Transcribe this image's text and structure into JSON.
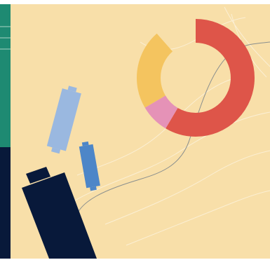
{
  "palette": {
    "page_background": "#ffffff",
    "canvas_background": "#f8dfa9",
    "sidebar_teal": "#1e8a72",
    "sidebar_navy": "#08193a",
    "sidebar_lines": "#a9d4c4",
    "donut_red": "#de5549",
    "donut_yellow": "#f4c45f",
    "donut_pink": "#e592b7",
    "candle_light_blue": "#9ab8e0",
    "candle_mid_blue": "#4d86c8",
    "candle_navy": "#08193a",
    "trend_line": "#8a8f8e",
    "decorative_lines": "#fbefd4"
  },
  "donut": {
    "segments": [
      {
        "name": "red",
        "fraction": 0.585,
        "color": "#de5549"
      },
      {
        "name": "pink",
        "fraction": 0.08,
        "color": "#e592b7"
      },
      {
        "name": "yellow",
        "fraction": 0.22,
        "color": "#f4c45f"
      }
    ]
  },
  "icons": {
    "donut": "donut-chart-icon",
    "candles": "candlestick-icon",
    "trend": "trend-line-icon"
  }
}
